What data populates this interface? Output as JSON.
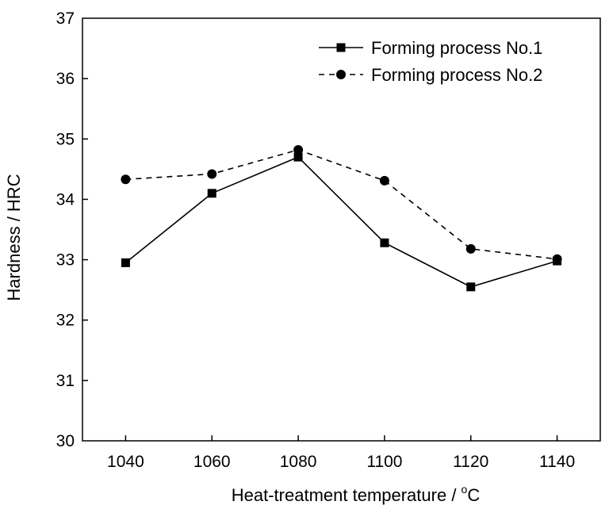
{
  "chart_data": {
    "type": "line",
    "x": [
      1040,
      1060,
      1080,
      1100,
      1120,
      1140
    ],
    "series": [
      {
        "name": "Forming process No.1",
        "values": [
          32.95,
          34.1,
          34.7,
          33.28,
          32.55,
          32.98
        ],
        "line_style": "solid",
        "marker": "square",
        "color": "#000000"
      },
      {
        "name": "Forming process No.2",
        "values": [
          34.33,
          34.42,
          34.82,
          34.31,
          33.18,
          33.01
        ],
        "line_style": "dashed",
        "marker": "circle",
        "color": "#000000"
      }
    ],
    "xlabel_main": "Heat-treatment temperature / ",
    "xlabel_sup": "o",
    "xlabel_unit": "C",
    "ylabel": "Hardness / HRC",
    "xlim": [
      1030,
      1150
    ],
    "ylim": [
      30,
      37
    ],
    "x_ticks": [
      "1040",
      "1060",
      "1080",
      "1100",
      "1120",
      "1140"
    ],
    "y_ticks": [
      "30",
      "31",
      "32",
      "33",
      "34",
      "35",
      "36",
      "37"
    ],
    "grid": false,
    "legend_position": "top-right"
  }
}
